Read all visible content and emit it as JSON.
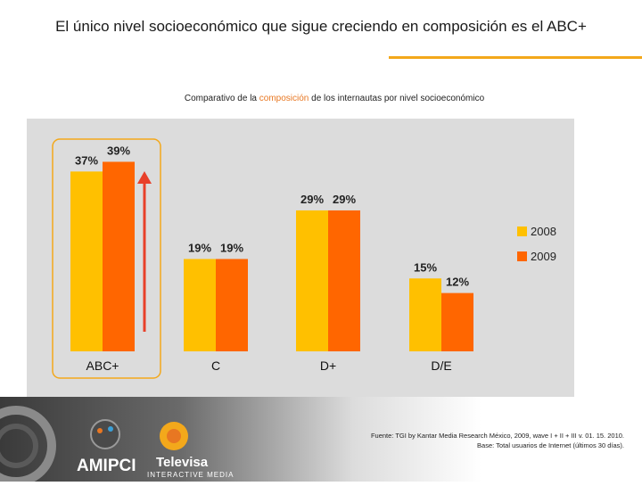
{
  "page": {
    "title": "El único nivel socioeconómico que sigue creciendo en composición es el ABC+",
    "subtitle_pre": "Comparativo de la ",
    "subtitle_highlight": "composición",
    "subtitle_post": " de los internautas por nivel socioeconómico",
    "source_line1": "Fuente: TGI by Kantar Media Research México, 2009, wave I + II + III v. 01. 15. 2010.",
    "source_line2": "Base: Total usuarios de Internet (últimos 30 días).",
    "logo_amipci": "AMIPCI",
    "logo_televisa": "Televisa",
    "logo_televisa_sub": "INTERACTIVE MEDIA"
  },
  "chart_data": {
    "type": "bar",
    "categories": [
      "ABC+",
      "C",
      "D+",
      "D/E"
    ],
    "series": [
      {
        "name": "2008",
        "values": [
          37,
          19,
          29,
          15
        ],
        "labels": [
          "37%",
          "19%",
          "29%",
          "15%"
        ],
        "color": "#ffc000"
      },
      {
        "name": "2009",
        "values": [
          39,
          19,
          29,
          12
        ],
        "labels": [
          "39%",
          "19%",
          "29%",
          "12%"
        ],
        "color": "#ff6600"
      }
    ],
    "ylim": [
      0,
      40
    ],
    "grid": false,
    "legend": "right",
    "highlight_category": "ABC+",
    "arrow_color": "#e8402a",
    "background_color": "#dcdcdc",
    "highlight_box_color": "#f3a81b"
  }
}
